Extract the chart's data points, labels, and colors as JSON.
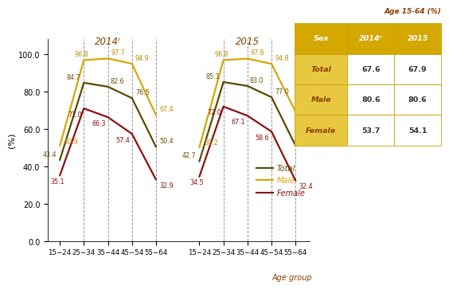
{
  "age_groups": [
    "15−24",
    "25−34",
    "35−44",
    "45−54",
    "55−64"
  ],
  "year2014": {
    "title": "2014ʳ",
    "total": [
      43.4,
      84.7,
      82.6,
      76.5,
      50.4
    ],
    "male": [
      50.9,
      96.8,
      97.7,
      94.9,
      67.4
    ],
    "female": [
      35.1,
      71.0,
      66.3,
      57.4,
      32.9
    ]
  },
  "year2015": {
    "title": "2015",
    "total": [
      42.7,
      85.1,
      83.0,
      77.0,
      51.1
    ],
    "male": [
      50.2,
      96.8,
      97.6,
      94.8,
      69.3
    ],
    "female": [
      34.5,
      72.0,
      67.1,
      58.6,
      32.4
    ]
  },
  "color_total": "#5a4a00",
  "color_male": "#d4a800",
  "color_female": "#8b1010",
  "ylabel": "(%)",
  "xlabel": "Age group",
  "ylim": [
    0,
    108
  ],
  "yticks": [
    0.0,
    20.0,
    40.0,
    60.0,
    80.0,
    100.0
  ],
  "table_header": "Age 15-64 (%)",
  "table_rows": [
    [
      "Sex",
      "2014ʳ",
      "2015"
    ],
    [
      "Total",
      "67.6",
      "67.9"
    ],
    [
      "Male",
      "80.6",
      "80.6"
    ],
    [
      "Female",
      "53.7",
      "54.1"
    ]
  ],
  "table_header_bg": "#d4a800",
  "table_row_bg_sex": "#e8c840",
  "table_border": "#c8a000",
  "title_color": "#8b4000",
  "label_color_total": "#6b5000",
  "label_color_male": "#b89000",
  "label_color_female": "#8b1010",
  "background": "#ffffff"
}
